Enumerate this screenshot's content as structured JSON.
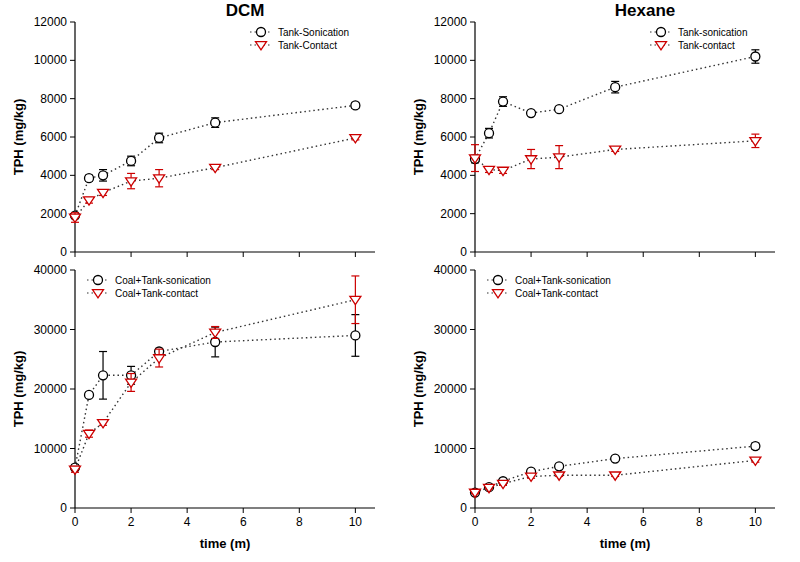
{
  "chart_data": [
    {
      "type": "line",
      "title": "DCM",
      "y_label": "TPH (mg/kg)",
      "x": [
        0,
        0.5,
        1,
        2,
        3,
        5,
        10
      ],
      "xlim": [
        0,
        10.7
      ],
      "xticks": [
        0,
        2,
        4,
        6,
        8,
        10
      ],
      "ylim": [
        0,
        12000
      ],
      "yticks": [
        0,
        2000,
        4000,
        6000,
        8000,
        10000,
        12000
      ],
      "grid": false,
      "legend": "top-right",
      "tick_labels": "y",
      "line_style": "dotted",
      "series": [
        {
          "name": "Tank-Sonication",
          "color": "#000000",
          "marker": "circle",
          "values": [
            1900,
            3850,
            4000,
            4750,
            5950,
            6750,
            7650
          ],
          "errors": [
            150,
            150,
            300,
            250,
            250,
            250,
            150
          ]
        },
        {
          "name": "Tank-Contact",
          "color": "#cc0000",
          "marker": "triangle-down",
          "values": [
            1800,
            2700,
            3100,
            3700,
            3850,
            4400,
            5950
          ],
          "errors": [
            250,
            150,
            150,
            400,
            450,
            100,
            100
          ]
        }
      ]
    },
    {
      "type": "line",
      "title": "Hexane",
      "y_label": "TPH (mg/kg)",
      "x": [
        0,
        0.5,
        1,
        2,
        3,
        5,
        10
      ],
      "xlim": [
        0,
        10.7
      ],
      "xticks": [
        0,
        2,
        4,
        6,
        8,
        10
      ],
      "ylim": [
        0,
        12000
      ],
      "yticks": [
        0,
        2000,
        4000,
        6000,
        8000,
        10000,
        12000
      ],
      "grid": false,
      "legend": "top-right",
      "tick_labels": "y",
      "line_style": "dotted",
      "series": [
        {
          "name": "Tank-sonication",
          "color": "#000000",
          "marker": "circle",
          "values": [
            4850,
            6200,
            7850,
            7250,
            7450,
            8600,
            10200
          ],
          "errors": [
            200,
            250,
            250,
            100,
            100,
            300,
            350
          ]
        },
        {
          "name": "Tank-contact",
          "color": "#cc0000",
          "marker": "triangle-down",
          "values": [
            4900,
            4300,
            4250,
            4850,
            4950,
            5350,
            5800
          ],
          "errors": [
            700,
            150,
            150,
            500,
            600,
            100,
            350
          ]
        }
      ]
    },
    {
      "type": "line",
      "y_label": "TPH (mg/kg)",
      "x_label": "time (m)",
      "x": [
        0,
        0.5,
        1,
        2,
        3,
        5,
        10
      ],
      "xlim": [
        0,
        10.7
      ],
      "xticks": [
        0,
        2,
        4,
        6,
        8,
        10
      ],
      "ylim": [
        0,
        40000
      ],
      "yticks": [
        0,
        10000,
        20000,
        30000,
        40000
      ],
      "grid": false,
      "legend": "top-left",
      "line_style": "dotted",
      "series": [
        {
          "name": "Coal+Tank-sonication",
          "color": "#000000",
          "marker": "circle",
          "values": [
            6800,
            19000,
            22300,
            22300,
            26300,
            27900,
            29000
          ],
          "errors": [
            500,
            400,
            4000,
            1500,
            500,
            2500,
            3500
          ]
        },
        {
          "name": "Coal+Tank-contact",
          "color": "#cc0000",
          "marker": "triangle-down",
          "values": [
            6500,
            12500,
            14300,
            21100,
            25200,
            29500,
            35000
          ],
          "errors": [
            500,
            600,
            400,
            1500,
            1500,
            1000,
            4000
          ]
        }
      ]
    },
    {
      "type": "line",
      "y_label": "TPH (mg/kg)",
      "x_label": "time (m)",
      "x": [
        0,
        0.5,
        1,
        2,
        3,
        5,
        10
      ],
      "xlim": [
        0,
        10.7
      ],
      "xticks": [
        0,
        2,
        4,
        6,
        8,
        10
      ],
      "ylim": [
        0,
        40000
      ],
      "yticks": [
        0,
        10000,
        20000,
        30000,
        40000
      ],
      "grid": false,
      "legend": "top-left",
      "line_style": "dotted",
      "series": [
        {
          "name": "Coal+Tank-sonication",
          "color": "#000000",
          "marker": "circle",
          "values": [
            2600,
            3500,
            4500,
            6100,
            7000,
            8300,
            10400
          ],
          "errors": [
            200,
            200,
            300,
            200,
            200,
            300,
            500
          ]
        },
        {
          "name": "Coal+Tank-contact",
          "color": "#cc0000",
          "marker": "triangle-down",
          "values": [
            2600,
            3400,
            4100,
            5300,
            5500,
            5500,
            8000
          ],
          "errors": [
            200,
            200,
            300,
            300,
            200,
            200,
            300
          ]
        }
      ]
    }
  ]
}
